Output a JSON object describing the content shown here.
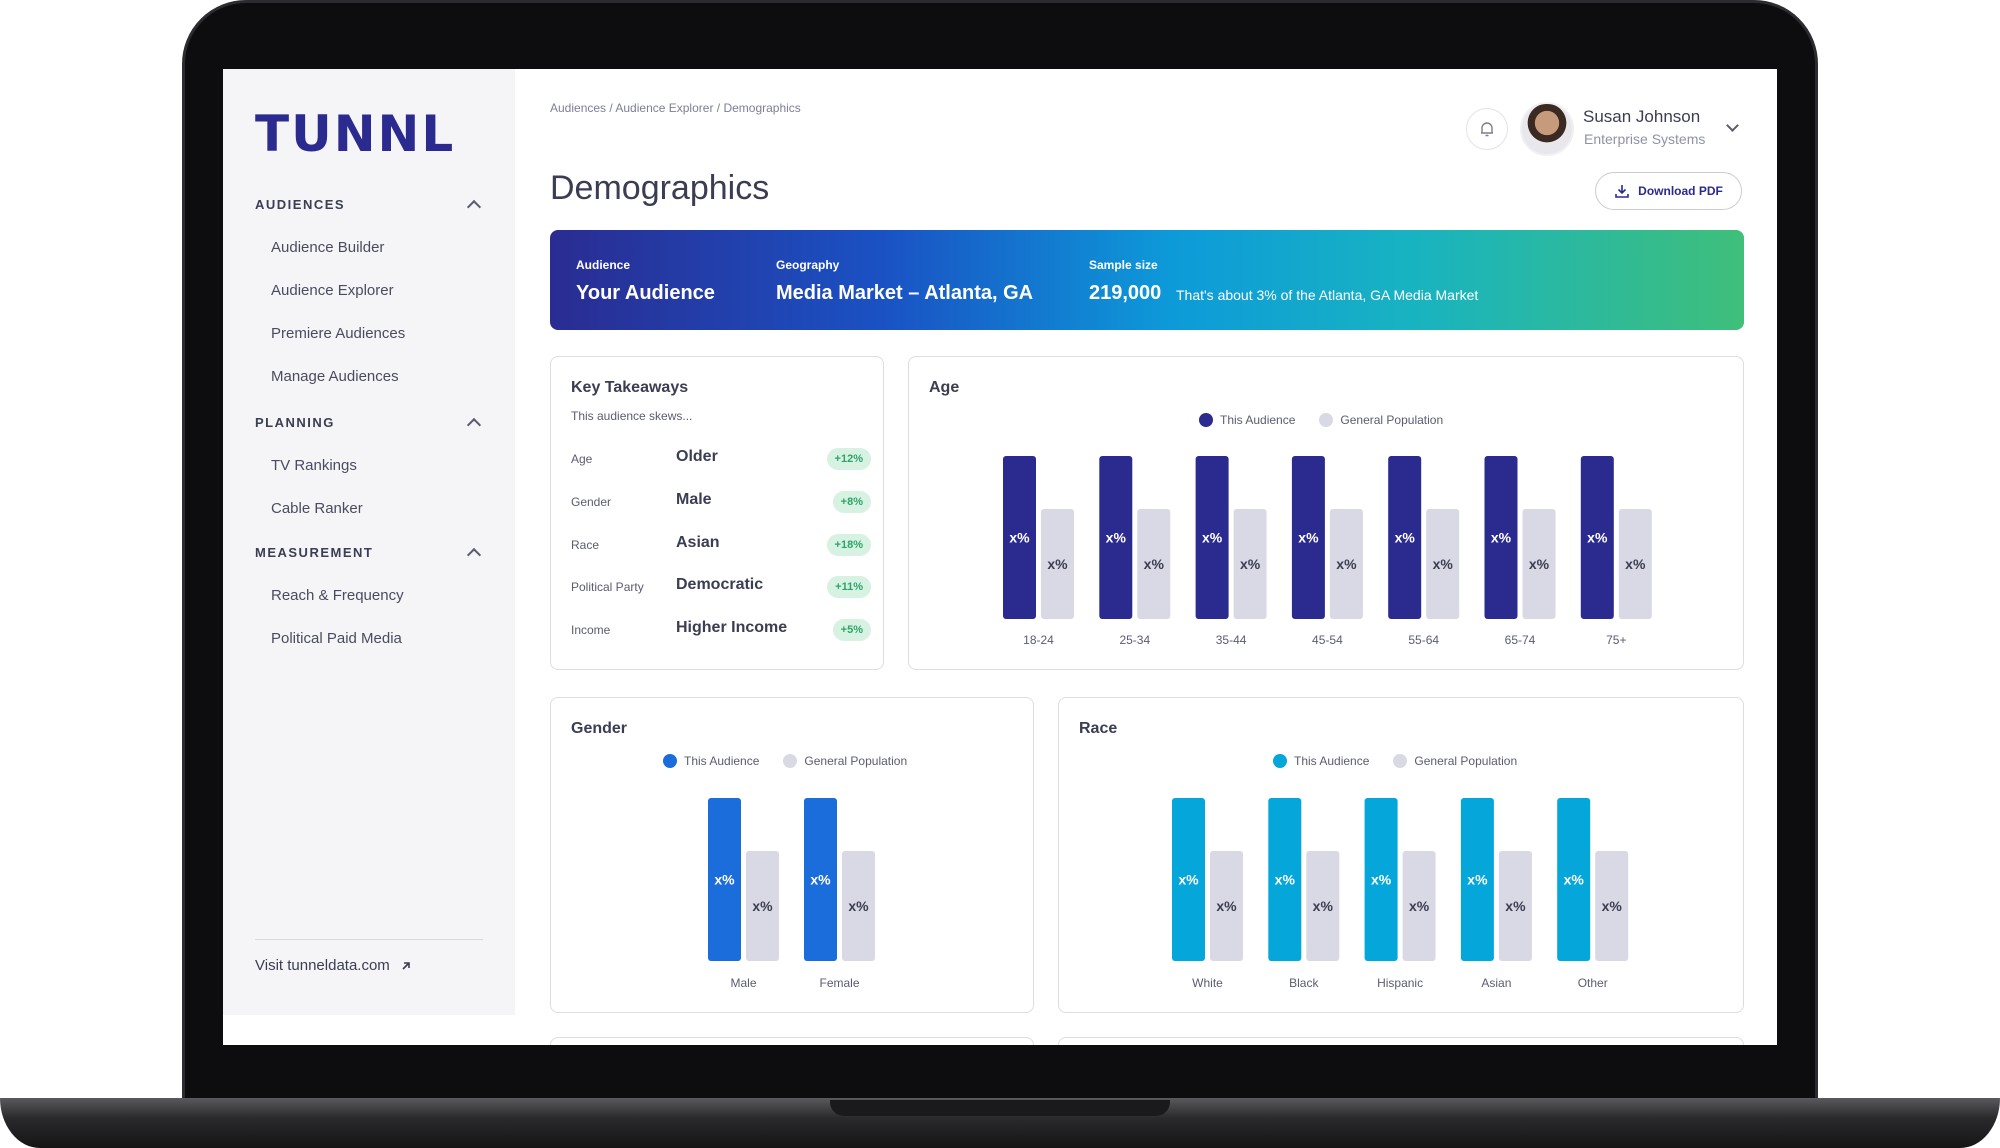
{
  "brand": {
    "logo": "TUNNL"
  },
  "sidebar": {
    "sections": [
      {
        "header": "AUDIENCES",
        "items": [
          "Audience Builder",
          "Audience Explorer",
          "Premiere Audiences",
          "Manage Audiences"
        ]
      },
      {
        "header": "PLANNING",
        "items": [
          "TV Rankings",
          "Cable Ranker"
        ]
      },
      {
        "header": "MEASUREMENT",
        "items": [
          "Reach & Frequency",
          "Political Paid Media"
        ]
      }
    ],
    "visit_link": "Visit tunneldata.com"
  },
  "header": {
    "breadcrumb": "Audiences / Audience Explorer / Demographics",
    "title": "Demographics",
    "user_name": "Susan Johnson",
    "user_org": "Enterprise Systems",
    "download_label": "Download PDF"
  },
  "banner": {
    "audience_label": "Audience",
    "audience_value": "Your Audience",
    "geography_label": "Geography",
    "geography_value": "Media Market – Atlanta, GA",
    "sample_label": "Sample size",
    "sample_value": "219,000",
    "sample_note": "That's about 3% of the Atlanta, GA Media Market"
  },
  "key_takeaways": {
    "title": "Key Takeaways",
    "subtitle": "This audience skews...",
    "rows": [
      {
        "label": "Age",
        "value": "Older",
        "delta": "+12%"
      },
      {
        "label": "Gender",
        "value": "Male",
        "delta": "+8%"
      },
      {
        "label": "Race",
        "value": "Asian",
        "delta": "+18%"
      },
      {
        "label": "Political Party",
        "value": "Democratic",
        "delta": "+11%"
      },
      {
        "label": "Income",
        "value": "Higher Income",
        "delta": "+5%"
      }
    ]
  },
  "colors": {
    "age_audience": "#2b2a8e",
    "gender_audience": "#1a6ddb",
    "race_audience": "#05a6d9",
    "population": "#d8d9e4",
    "pill_bg": "#d7f2e2",
    "pill_text": "#2ea46a"
  },
  "chart_data": [
    {
      "type": "bar",
      "title": "Age",
      "categories": [
        "18-24",
        "25-34",
        "35-44",
        "45-54",
        "55-64",
        "65-74",
        "75+"
      ],
      "series": [
        {
          "name": "This Audience",
          "labels": [
            "x%",
            "x%",
            "x%",
            "x%",
            "x%",
            "x%",
            "x%"
          ]
        },
        {
          "name": "General Population",
          "labels": [
            "x%",
            "x%",
            "x%",
            "x%",
            "x%",
            "x%",
            "x%"
          ]
        }
      ]
    },
    {
      "type": "bar",
      "title": "Gender",
      "categories": [
        "Male",
        "Female"
      ],
      "series": [
        {
          "name": "This Audience",
          "labels": [
            "x%",
            "x%"
          ]
        },
        {
          "name": "General Population",
          "labels": [
            "x%",
            "x%"
          ]
        }
      ]
    },
    {
      "type": "bar",
      "title": "Race",
      "categories": [
        "White",
        "Black",
        "Hispanic",
        "Asian",
        "Other"
      ],
      "series": [
        {
          "name": "This Audience",
          "labels": [
            "x%",
            "x%",
            "x%",
            "x%",
            "x%"
          ]
        },
        {
          "name": "General Population",
          "labels": [
            "x%",
            "x%",
            "x%",
            "x%",
            "x%"
          ]
        }
      ]
    }
  ]
}
